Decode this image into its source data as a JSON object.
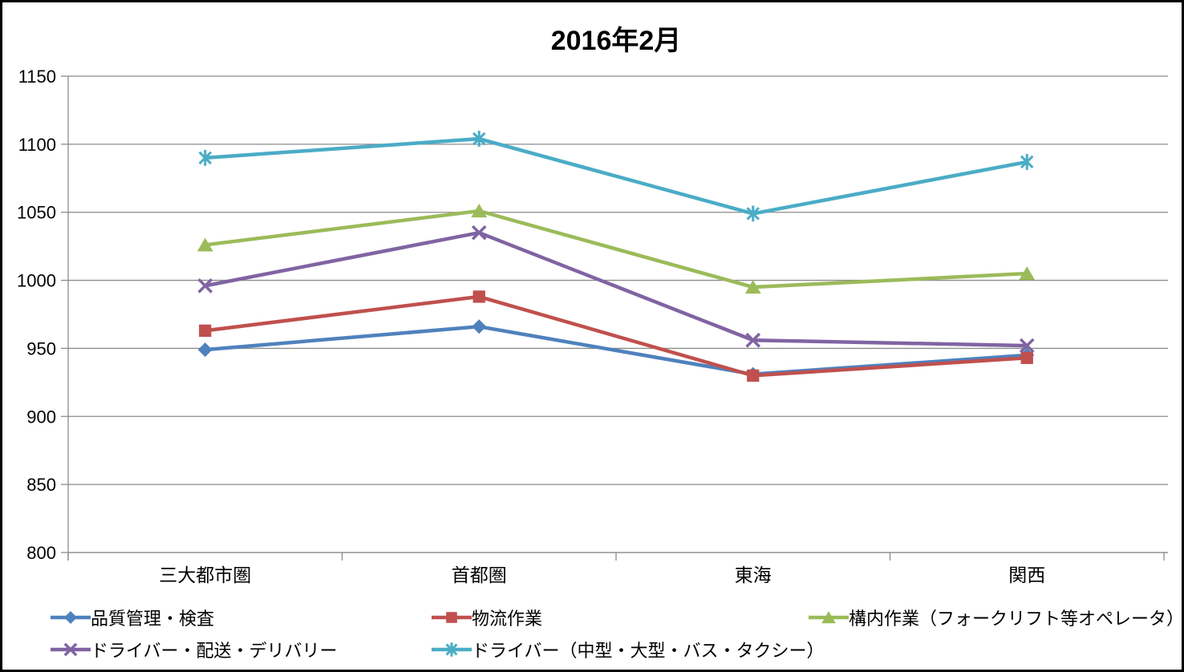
{
  "chart_data": {
    "type": "line",
    "title": "2016年2月",
    "categories": [
      "三大都市圏",
      "首都圏",
      "東海",
      "関西"
    ],
    "series": [
      {
        "name": "品質管理・検査",
        "marker": "diamond",
        "color": "#4F81BD",
        "values": [
          949,
          966,
          931,
          945
        ]
      },
      {
        "name": "物流作業",
        "marker": "square",
        "color": "#C0504D",
        "values": [
          963,
          988,
          930,
          943
        ]
      },
      {
        "name": "構内作業（フォークリフト等オペレータ）",
        "marker": "triangle",
        "color": "#9BBB59",
        "values": [
          1026,
          1051,
          995,
          1005
        ]
      },
      {
        "name": "ドライバー・配送・デリバリー",
        "marker": "x",
        "color": "#8064A2",
        "values": [
          996,
          1035,
          956,
          952
        ]
      },
      {
        "name": "ドライバー（中型・大型・バス・タクシー）",
        "marker": "asterisk",
        "color": "#4BACC6",
        "values": [
          1090,
          1104,
          1049,
          1087
        ]
      }
    ],
    "ylim": [
      800,
      1150
    ],
    "yticks": [
      800,
      850,
      900,
      950,
      1000,
      1050,
      1100,
      1150
    ],
    "grid": true,
    "grid_color": "#8C8C8C",
    "axis_color": "#8C8C8C",
    "legend_position": "bottom"
  }
}
